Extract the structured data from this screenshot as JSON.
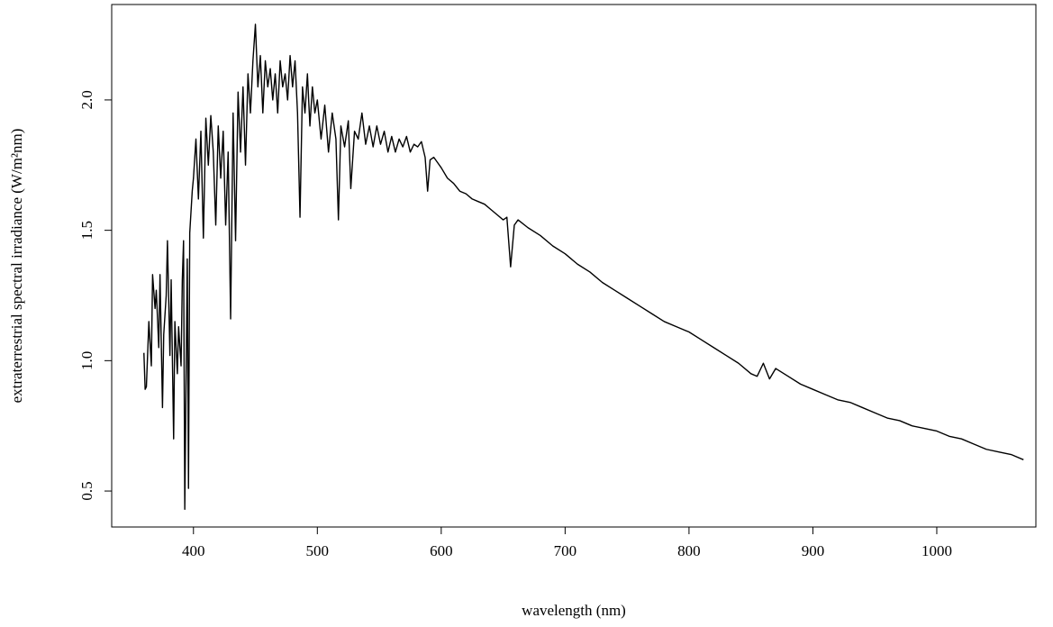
{
  "chart_data": {
    "type": "line",
    "x_label": "wavelength (nm)",
    "y_label": "extraterrestrial spectral irradiance (W/m²nm)",
    "color": "#000000",
    "xlim": [
      334,
      1080
    ],
    "ylim": [
      0.362,
      2.366
    ],
    "xticks": [
      400,
      500,
      600,
      700,
      800,
      900,
      1000
    ],
    "yticks": [
      0.5,
      {
        "value": 1,
        "label": "1.0"
      },
      1.5,
      {
        "value": 2,
        "label": "2.0"
      }
    ],
    "x": [
      360,
      361,
      362,
      364,
      366,
      367,
      369,
      370,
      372,
      373,
      375,
      376,
      378,
      379,
      381,
      382,
      384,
      385,
      387,
      388,
      390,
      391,
      392,
      393,
      395,
      396,
      397,
      399,
      400,
      402,
      404,
      406,
      408,
      410,
      412,
      414,
      416,
      418,
      420,
      422,
      424,
      426,
      428,
      430,
      432,
      434,
      436,
      438,
      440,
      442,
      444,
      446,
      448,
      450,
      452,
      454,
      456,
      458,
      460,
      462,
      464,
      466,
      468,
      470,
      472,
      474,
      476,
      478,
      480,
      482,
      484,
      486,
      488,
      490,
      492,
      494,
      496,
      498,
      500,
      503,
      506,
      509,
      512,
      515,
      517,
      519,
      522,
      525,
      527,
      530,
      533,
      536,
      539,
      542,
      545,
      548,
      551,
      554,
      557,
      560,
      563,
      566,
      569,
      572,
      575,
      578,
      581,
      584,
      587,
      589,
      591,
      594,
      597,
      600,
      605,
      610,
      615,
      620,
      625,
      630,
      635,
      640,
      645,
      650,
      653,
      656,
      659,
      662,
      670,
      680,
      690,
      700,
      710,
      720,
      730,
      740,
      750,
      760,
      770,
      780,
      790,
      800,
      810,
      820,
      830,
      840,
      850,
      855,
      860,
      865,
      870,
      880,
      890,
      900,
      910,
      920,
      930,
      940,
      950,
      960,
      970,
      980,
      990,
      1000,
      1010,
      1020,
      1030,
      1040,
      1050,
      1060,
      1070
    ],
    "values": [
      1.03,
      0.89,
      0.9,
      1.15,
      0.98,
      1.33,
      1.2,
      1.27,
      1.05,
      1.33,
      0.82,
      1.1,
      1.25,
      1.46,
      1.02,
      1.31,
      0.7,
      1.15,
      0.95,
      1.13,
      0.98,
      1.31,
      1.46,
      0.43,
      1.39,
      0.51,
      1.49,
      1.65,
      1.7,
      1.85,
      1.62,
      1.88,
      1.47,
      1.93,
      1.75,
      1.94,
      1.8,
      1.52,
      1.9,
      1.7,
      1.88,
      1.52,
      1.8,
      1.16,
      1.95,
      1.46,
      2.03,
      1.8,
      2.05,
      1.75,
      2.1,
      1.95,
      2.15,
      2.29,
      2.05,
      2.17,
      1.95,
      2.15,
      2.05,
      2.12,
      2.0,
      2.1,
      1.95,
      2.15,
      2.05,
      2.1,
      2.0,
      2.17,
      2.05,
      2.15,
      1.95,
      1.55,
      2.05,
      1.95,
      2.1,
      1.9,
      2.05,
      1.95,
      2.0,
      1.85,
      1.98,
      1.8,
      1.95,
      1.85,
      1.54,
      1.9,
      1.82,
      1.92,
      1.66,
      1.88,
      1.85,
      1.95,
      1.83,
      1.9,
      1.82,
      1.9,
      1.83,
      1.88,
      1.8,
      1.86,
      1.8,
      1.85,
      1.82,
      1.86,
      1.8,
      1.83,
      1.82,
      1.84,
      1.78,
      1.65,
      1.77,
      1.78,
      1.76,
      1.74,
      1.7,
      1.68,
      1.65,
      1.64,
      1.62,
      1.61,
      1.6,
      1.58,
      1.56,
      1.54,
      1.55,
      1.36,
      1.52,
      1.54,
      1.51,
      1.48,
      1.44,
      1.41,
      1.37,
      1.34,
      1.3,
      1.27,
      1.24,
      1.21,
      1.18,
      1.15,
      1.13,
      1.11,
      1.08,
      1.05,
      1.02,
      0.99,
      0.95,
      0.94,
      0.99,
      0.93,
      0.97,
      0.94,
      0.91,
      0.89,
      0.87,
      0.85,
      0.84,
      0.82,
      0.8,
      0.78,
      0.77,
      0.75,
      0.74,
      0.73,
      0.71,
      0.7,
      0.68,
      0.66,
      0.65,
      0.64,
      0.62
    ]
  }
}
